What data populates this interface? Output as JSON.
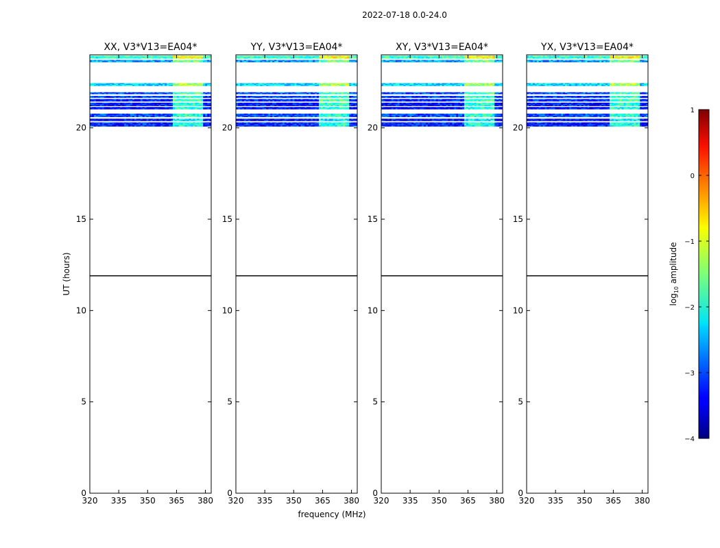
{
  "suptitle": "2022-07-18 0.0-24.0",
  "chart_data": {
    "type": "heatmap",
    "title": "2022-07-18 0.0-24.0",
    "xlabel": "frequency (MHz)",
    "ylabel": "UT (hours)",
    "xlim": [
      320,
      383
    ],
    "ylim": [
      0,
      24
    ],
    "x_ticks": [
      320,
      335,
      350,
      365,
      380
    ],
    "y_ticks": [
      0,
      5,
      10,
      15,
      20
    ],
    "panels": [
      {
        "title": "XX, V3*V13=EA04*"
      },
      {
        "title": "YY, V3*V13=EA04*"
      },
      {
        "title": "XY, V3*V13=EA04*"
      },
      {
        "title": "YX, V3*V13=EA04*"
      }
    ],
    "data_rows_ut": [
      {
        "ut": [
          23.8,
          23.95
        ],
        "level": -1.9,
        "hot": -0.9
      },
      {
        "ut": [
          23.6,
          23.72
        ],
        "level": -2.6,
        "hot": -1.6
      },
      {
        "ut": [
          22.3,
          22.45
        ],
        "level": -2.3,
        "hot": -1.3
      },
      {
        "ut": [
          21.85,
          21.95
        ],
        "level": -3.0,
        "hot": -1.8
      },
      {
        "ut": [
          21.65,
          21.75
        ],
        "level": -3.1,
        "hot": -1.9
      },
      {
        "ut": [
          21.45,
          21.58
        ],
        "level": -3.2,
        "hot": -1.8
      },
      {
        "ut": [
          21.2,
          21.38
        ],
        "level": -3.3,
        "hot": -1.9
      },
      {
        "ut": [
          21.02,
          21.14
        ],
        "level": -3.4,
        "hot": -2.0
      },
      {
        "ut": [
          20.6,
          20.78
        ],
        "level": -3.0,
        "hot": -1.9
      },
      {
        "ut": [
          20.38,
          20.5
        ],
        "level": -3.4,
        "hot": -2.2
      },
      {
        "ut": [
          20.08,
          20.3
        ],
        "level": -3.2,
        "hot": -2.0
      }
    ],
    "hot_band_mhz": [
      363,
      379
    ],
    "divider_ut": 11.9,
    "colorbar": {
      "label": "log10 amplitude",
      "colormap": "jet",
      "range": [
        -4,
        1
      ],
      "ticks": [
        1,
        0,
        -1,
        -2,
        -3,
        -4
      ]
    }
  }
}
